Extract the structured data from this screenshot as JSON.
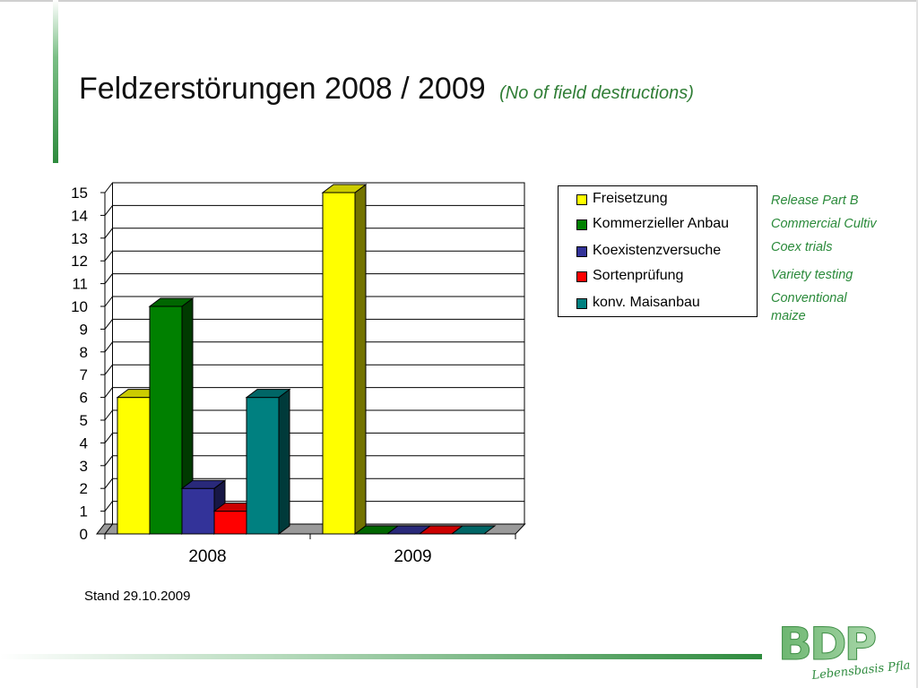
{
  "slide": {
    "title": "Feldzerstörungen 2008 / 2009",
    "subtitle": "(No of field destructions)",
    "footnote": "Stand 29.10.2009",
    "translations": [
      "Release Part B",
      "Commercial Cultiv",
      "Coex trials",
      "Variety testing",
      "Conventional maize"
    ],
    "logo": {
      "text": "BDP",
      "tagline": "Lebensbasis Pflanze"
    }
  },
  "chart_data": {
    "type": "bar",
    "categories": [
      "2008",
      "2009"
    ],
    "series": [
      {
        "name": "Freisetzung",
        "color": "#ffff00",
        "values": [
          6,
          15
        ]
      },
      {
        "name": "Kommerzieller Anbau",
        "color": "#008000",
        "values": [
          10,
          0
        ]
      },
      {
        "name": "Koexistenzversuche",
        "color": "#333399",
        "values": [
          2,
          0
        ]
      },
      {
        "name": "Sortenprüfung",
        "color": "#ff0000",
        "values": [
          1,
          0
        ]
      },
      {
        "name": "konv. Maisanbau",
        "color": "#008080",
        "values": [
          6,
          0
        ]
      }
    ],
    "ylim": [
      0,
      15
    ],
    "yticks": [
      0,
      1,
      2,
      3,
      4,
      5,
      6,
      7,
      8,
      9,
      10,
      11,
      12,
      13,
      14,
      15
    ],
    "grid": true,
    "legend": "right",
    "style": "3d"
  }
}
